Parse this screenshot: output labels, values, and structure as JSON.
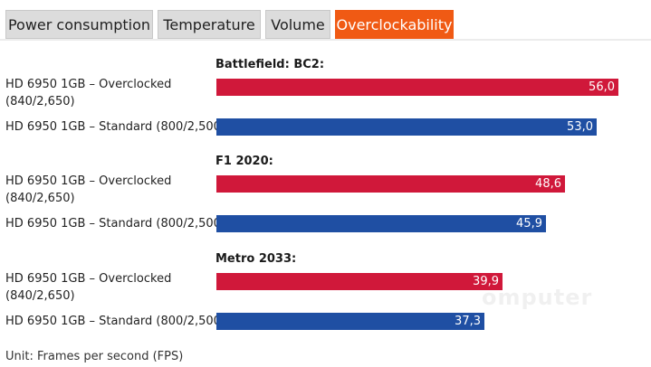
{
  "tabs": [
    {
      "label": "Power consumption",
      "active": false
    },
    {
      "label": "Temperature",
      "active": false
    },
    {
      "label": "Volume",
      "active": false
    },
    {
      "label": "Overclockability",
      "active": true
    }
  ],
  "colors": {
    "accent": "#f05a14",
    "overclocked": "#d0183a",
    "standard": "#1f4fa3"
  },
  "unit_label": "Unit: Frames per second (FPS)",
  "watermark": "omputer",
  "chart_data": {
    "type": "bar",
    "orientation": "horizontal",
    "xlim": [
      0,
      56
    ],
    "series": [
      {
        "name": "HD 6950 1GB – Overclocked\n(840/2,650)",
        "color": "#d0183a"
      },
      {
        "name": "HD 6950 1GB – Standard (800/2,500)",
        "color": "#1f4fa3"
      }
    ],
    "groups": [
      {
        "title": "Battlefield: BC2:",
        "values": [
          "56,0",
          "53,0"
        ]
      },
      {
        "title": "F1 2020:",
        "values": [
          "48,6",
          "45,9"
        ]
      },
      {
        "title": "Metro 2033:",
        "values": [
          "39,9",
          "37,3"
        ]
      }
    ]
  }
}
